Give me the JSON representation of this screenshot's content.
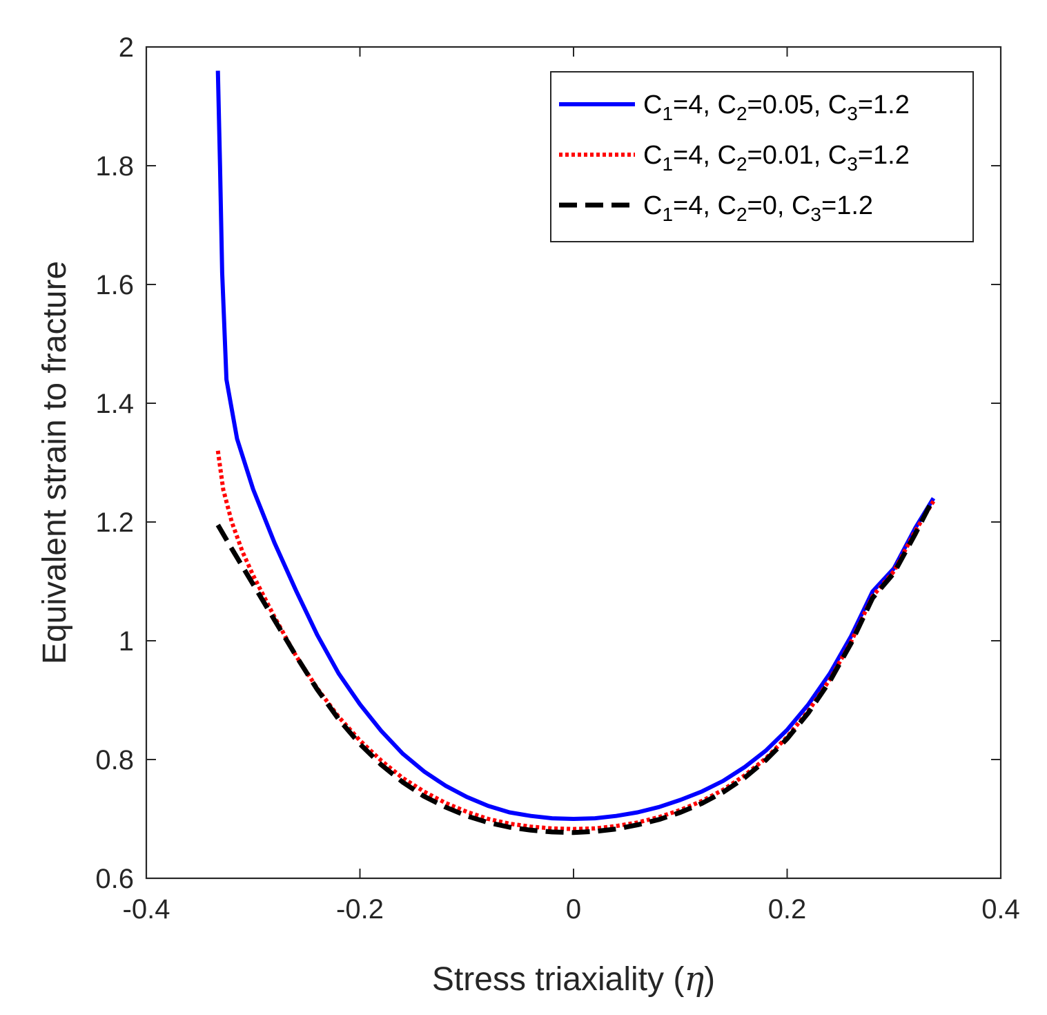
{
  "chart_data": {
    "type": "line",
    "xlabel": "Stress triaxiality",
    "xlabel_symbol": "η",
    "ylabel": "Equivalent strain to fracture",
    "xlim": [
      -0.4,
      0.4
    ],
    "ylim": [
      0.6,
      2.0
    ],
    "xticks": [
      -0.4,
      -0.2,
      0,
      0.2,
      0.4
    ],
    "xtick_labels": [
      "-0.4",
      "-0.2",
      "0",
      "0.2",
      "0.4"
    ],
    "yticks": [
      0.6,
      0.8,
      1.0,
      1.2,
      1.4,
      1.6,
      1.8,
      2.0
    ],
    "ytick_labels": [
      "0.6",
      "0.8",
      "1",
      "1.2",
      "1.4",
      "1.6",
      "1.8",
      "2"
    ],
    "legend_position": "top-right",
    "series": [
      {
        "name": "C1=4, C2=0.05, C3=1.2",
        "legend_parts": {
          "c1": "4",
          "c2": "0.05",
          "c3": "1.2"
        },
        "color": "#0000ff",
        "style": "solid",
        "points": [
          [
            -0.333,
            1.96
          ],
          [
            -0.331,
            1.8
          ],
          [
            -0.329,
            1.62
          ],
          [
            -0.325,
            1.44
          ],
          [
            -0.315,
            1.34
          ],
          [
            -0.3,
            1.255
          ],
          [
            -0.28,
            1.165
          ],
          [
            -0.26,
            1.085
          ],
          [
            -0.24,
            1.01
          ],
          [
            -0.22,
            0.945
          ],
          [
            -0.2,
            0.893
          ],
          [
            -0.18,
            0.848
          ],
          [
            -0.16,
            0.81
          ],
          [
            -0.14,
            0.78
          ],
          [
            -0.12,
            0.756
          ],
          [
            -0.1,
            0.737
          ],
          [
            -0.08,
            0.722
          ],
          [
            -0.06,
            0.711
          ],
          [
            -0.04,
            0.705
          ],
          [
            -0.02,
            0.701
          ],
          [
            0.0,
            0.7
          ],
          [
            0.02,
            0.701
          ],
          [
            0.04,
            0.705
          ],
          [
            0.06,
            0.711
          ],
          [
            0.08,
            0.72
          ],
          [
            0.1,
            0.732
          ],
          [
            0.12,
            0.746
          ],
          [
            0.14,
            0.764
          ],
          [
            0.16,
            0.787
          ],
          [
            0.18,
            0.815
          ],
          [
            0.2,
            0.85
          ],
          [
            0.22,
            0.893
          ],
          [
            0.24,
            0.945
          ],
          [
            0.26,
            1.008
          ],
          [
            0.28,
            1.083
          ],
          [
            0.3,
            1.122
          ],
          [
            0.32,
            1.19
          ],
          [
            0.337,
            1.24
          ]
        ]
      },
      {
        "name": "C1=4, C2=0.01, C3=1.2",
        "legend_parts": {
          "c1": "4",
          "c2": "0.01",
          "c3": "1.2"
        },
        "color": "#ff0000",
        "style": "dotted",
        "points": [
          [
            -0.333,
            1.32
          ],
          [
            -0.328,
            1.255
          ],
          [
            -0.32,
            1.2
          ],
          [
            -0.31,
            1.15
          ],
          [
            -0.3,
            1.11
          ],
          [
            -0.28,
            1.04
          ],
          [
            -0.26,
            0.975
          ],
          [
            -0.24,
            0.92
          ],
          [
            -0.22,
            0.872
          ],
          [
            -0.2,
            0.832
          ],
          [
            -0.18,
            0.798
          ],
          [
            -0.16,
            0.769
          ],
          [
            -0.14,
            0.746
          ],
          [
            -0.12,
            0.727
          ],
          [
            -0.1,
            0.712
          ],
          [
            -0.08,
            0.7
          ],
          [
            -0.06,
            0.692
          ],
          [
            -0.04,
            0.687
          ],
          [
            -0.02,
            0.684
          ],
          [
            0.0,
            0.683
          ],
          [
            0.02,
            0.684
          ],
          [
            0.04,
            0.688
          ],
          [
            0.06,
            0.694
          ],
          [
            0.08,
            0.703
          ],
          [
            0.1,
            0.715
          ],
          [
            0.12,
            0.73
          ],
          [
            0.14,
            0.749
          ],
          [
            0.16,
            0.773
          ],
          [
            0.18,
            0.802
          ],
          [
            0.2,
            0.838
          ],
          [
            0.22,
            0.882
          ],
          [
            0.24,
            0.935
          ],
          [
            0.26,
            0.999
          ],
          [
            0.28,
            1.075
          ],
          [
            0.3,
            1.117
          ],
          [
            0.32,
            1.185
          ],
          [
            0.337,
            1.235
          ]
        ]
      },
      {
        "name": "C1=4, C2=0, C3=1.2",
        "legend_parts": {
          "c1": "4",
          "c2": "0",
          "c3": "1.2"
        },
        "color": "#000000",
        "style": "dashed",
        "points": [
          [
            -0.333,
            1.195
          ],
          [
            -0.32,
            1.155
          ],
          [
            -0.3,
            1.095
          ],
          [
            -0.28,
            1.035
          ],
          [
            -0.26,
            0.975
          ],
          [
            -0.24,
            0.918
          ],
          [
            -0.22,
            0.868
          ],
          [
            -0.2,
            0.826
          ],
          [
            -0.18,
            0.791
          ],
          [
            -0.16,
            0.762
          ],
          [
            -0.14,
            0.738
          ],
          [
            -0.12,
            0.72
          ],
          [
            -0.1,
            0.705
          ],
          [
            -0.08,
            0.694
          ],
          [
            -0.06,
            0.686
          ],
          [
            -0.04,
            0.681
          ],
          [
            -0.02,
            0.678
          ],
          [
            0.0,
            0.677
          ],
          [
            0.02,
            0.679
          ],
          [
            0.04,
            0.683
          ],
          [
            0.06,
            0.69
          ],
          [
            0.08,
            0.699
          ],
          [
            0.1,
            0.711
          ],
          [
            0.12,
            0.726
          ],
          [
            0.14,
            0.745
          ],
          [
            0.16,
            0.769
          ],
          [
            0.18,
            0.799
          ],
          [
            0.2,
            0.835
          ],
          [
            0.22,
            0.879
          ],
          [
            0.24,
            0.932
          ],
          [
            0.26,
            0.996
          ],
          [
            0.28,
            1.072
          ],
          [
            0.3,
            1.114
          ],
          [
            0.32,
            1.18
          ],
          [
            0.337,
            1.24
          ]
        ]
      }
    ]
  }
}
